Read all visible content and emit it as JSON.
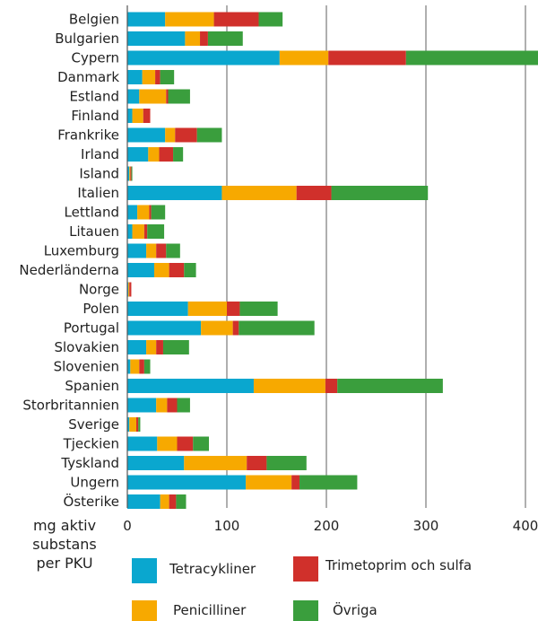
{
  "chart_data": {
    "type": "bar",
    "orientation": "horizontal",
    "stacked": true,
    "categories": [
      "Belgien",
      "Bulgarien",
      "Cypern",
      "Danmark",
      "Estland",
      "Finland",
      "Frankrike",
      "Irland",
      "Island",
      "Italien",
      "Lettland",
      "Litauen",
      "Luxemburg",
      "Nederländerna",
      "Norge",
      "Polen",
      "Portugal",
      "Slovakien",
      "Slovenien",
      "Spanien",
      "Storbritannien",
      "Sverige",
      "Tjeckien",
      "Tyskland",
      "Ungern",
      "Österike"
    ],
    "series": [
      {
        "name": "Tetracykliner",
        "color": "#0aa7cf",
        "values": [
          38,
          58,
          153,
          15,
          12,
          5,
          38,
          21,
          2,
          95,
          10,
          5,
          19,
          27,
          1,
          61,
          74,
          19,
          3,
          127,
          29,
          2,
          30,
          57,
          119,
          33
        ]
      },
      {
        "name": "Penicilliner",
        "color": "#f7a900",
        "values": [
          49,
          15,
          49,
          13,
          27,
          11,
          10,
          11,
          1,
          75,
          12,
          12,
          10,
          15,
          1,
          39,
          32,
          10,
          9,
          72,
          11,
          7,
          20,
          63,
          46,
          9
        ]
      },
      {
        "name": "Trimetoprim och sulfa",
        "color": "#d0302b",
        "values": [
          45,
          8,
          78,
          5,
          2,
          7,
          22,
          14,
          1,
          35,
          2,
          3,
          10,
          15,
          2,
          13,
          6,
          7,
          5,
          12,
          10,
          2,
          16,
          20,
          8,
          7
        ]
      },
      {
        "name": "Övriga",
        "color": "#3a9e3d",
        "values": [
          24,
          35,
          135,
          14,
          22,
          0,
          25,
          10,
          1,
          97,
          14,
          17,
          14,
          12,
          0,
          38,
          76,
          26,
          6,
          106,
          13,
          2,
          16,
          40,
          58,
          10
        ]
      }
    ],
    "xlim": [
      0,
      415
    ],
    "xticks": [
      0,
      100,
      200,
      300,
      400
    ],
    "xlabel": [
      "mg aktiv",
      "substans",
      "per PKU"
    ],
    "ylabel": "",
    "grid": "vertical lines at ticks",
    "legend": {
      "placement": "bottom",
      "order": [
        "Tetracykliner",
        "Trimetoprim och sulfa",
        "Penicilliner",
        "Övriga"
      ]
    }
  }
}
